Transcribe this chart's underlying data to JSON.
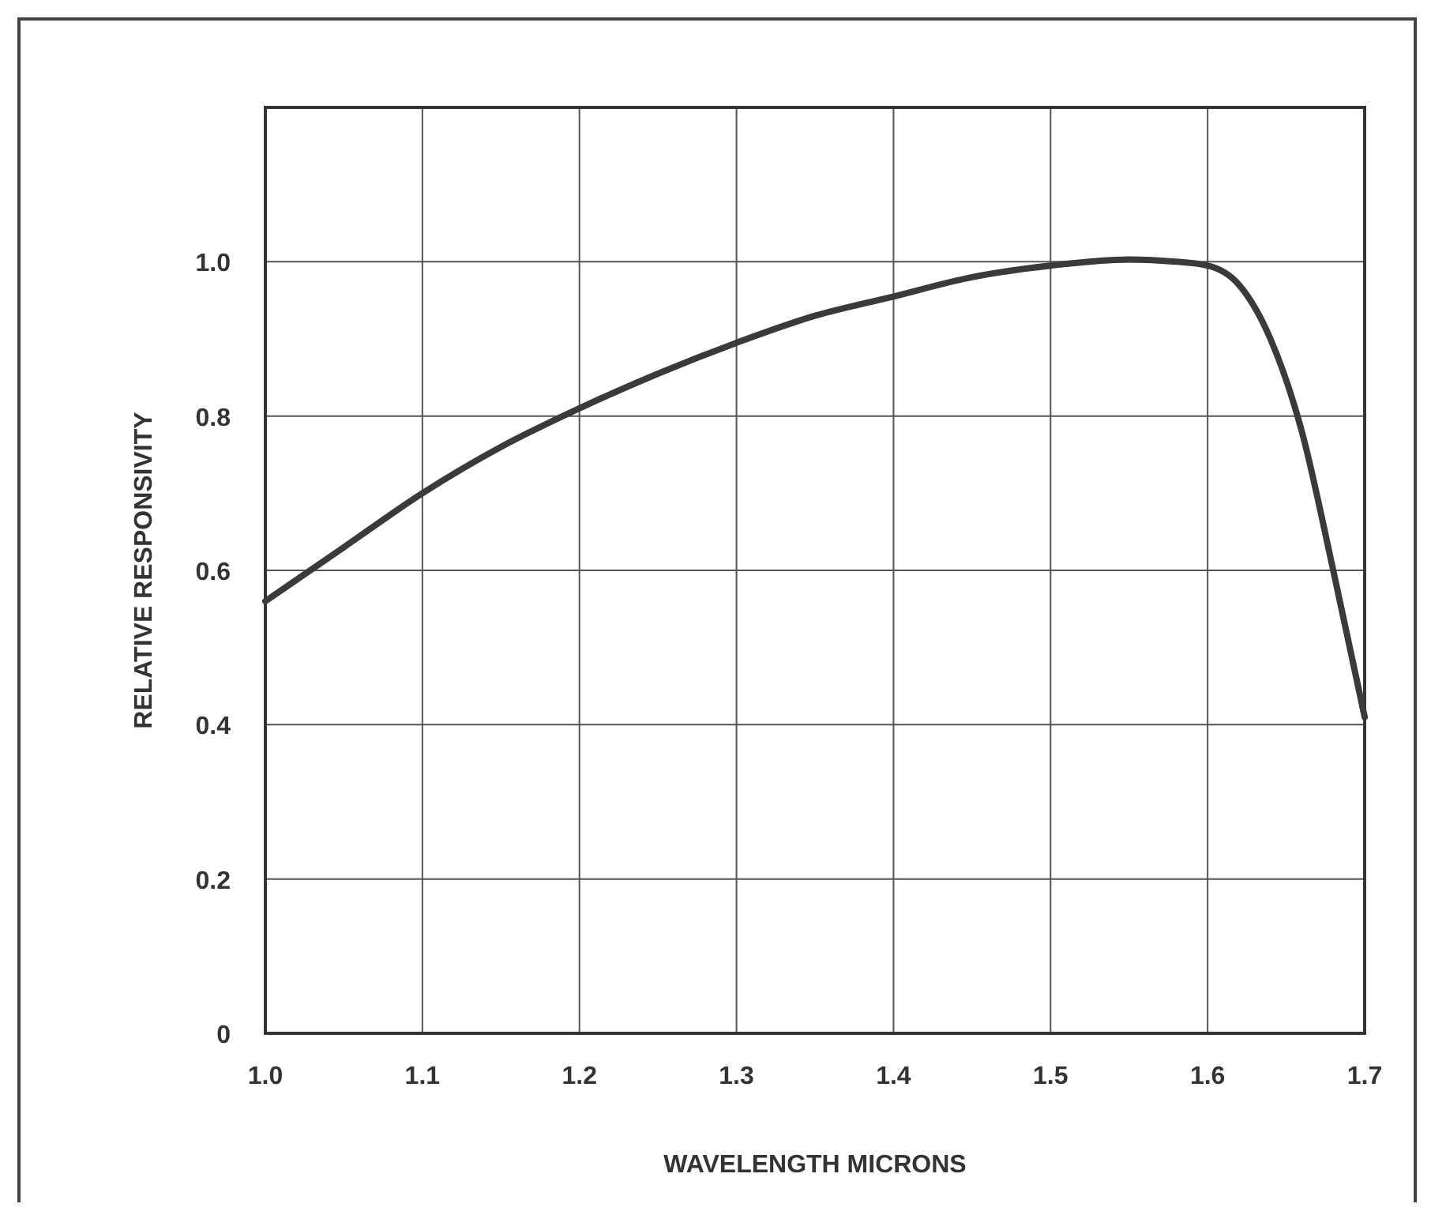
{
  "chart_data": {
    "type": "line",
    "xlabel": "WAVELENGTH MICRONS",
    "ylabel": "RELATIVE RESPONSIVITY",
    "x": [
      1.0,
      1.05,
      1.1,
      1.15,
      1.2,
      1.25,
      1.3,
      1.35,
      1.4,
      1.45,
      1.5,
      1.55,
      1.58,
      1.6,
      1.62,
      1.64,
      1.66,
      1.68,
      1.7
    ],
    "series": [
      {
        "color": "#3a3a3a",
        "values": [
          0.56,
          0.63,
          0.7,
          0.76,
          0.81,
          0.855,
          0.895,
          0.93,
          0.955,
          0.98,
          0.995,
          1.003,
          1.0,
          0.995,
          0.97,
          0.9,
          0.78,
          0.6,
          0.41
        ]
      }
    ],
    "xlim": [
      1.0,
      1.7
    ],
    "ylim": [
      0,
      1.2
    ],
    "xticks": [
      {
        "value": 1.0,
        "label": "1.0"
      },
      1.1,
      1.2,
      1.3,
      1.4,
      1.5,
      1.6,
      1.7
    ],
    "yticks": [
      0,
      0.2,
      0.4,
      0.6,
      0.8,
      {
        "value": 1.0,
        "label": "1.0"
      },
      {
        "value": 1.2,
        "label": null
      }
    ],
    "grid": true,
    "marker": "none",
    "line_style": "solid"
  }
}
